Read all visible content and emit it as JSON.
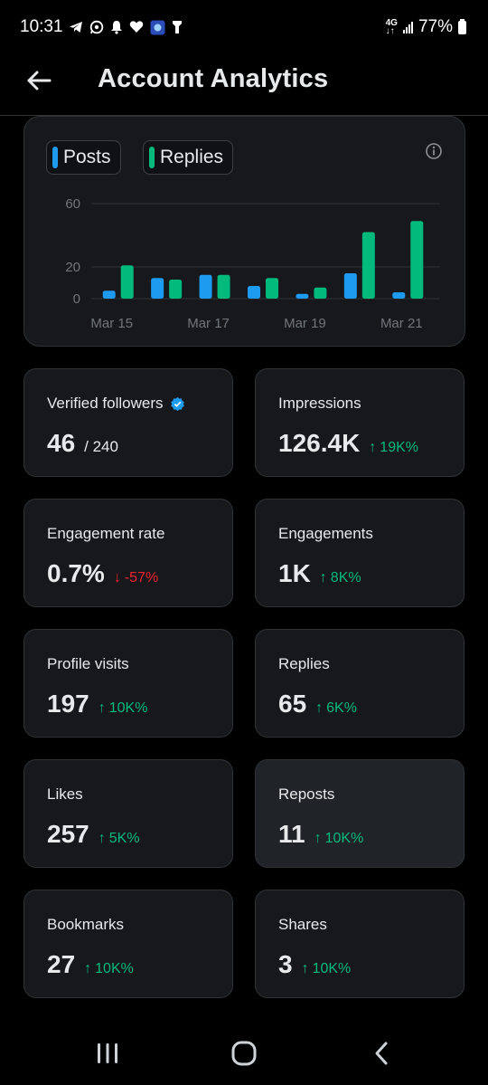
{
  "status_bar": {
    "time": "10:31",
    "notification_icons": [
      "telegram-icon",
      "whatsapp-icon",
      "bell-icon",
      "heart-icon",
      "app-icon",
      "flashlight-icon"
    ],
    "network": "4G",
    "battery": "77%"
  },
  "header": {
    "title": "Account Analytics"
  },
  "chart": {
    "legend": [
      {
        "label": "Posts",
        "color": "#1d9bf0"
      },
      {
        "label": "Replies",
        "color": "#00ba7c"
      }
    ]
  },
  "chart_data": {
    "type": "bar",
    "categories": [
      "Mar 15",
      "Mar 16",
      "Mar 17",
      "Mar 18",
      "Mar 19",
      "Mar 20",
      "Mar 21"
    ],
    "x_tick_labels": [
      "Mar 15",
      "Mar 17",
      "Mar 19",
      "Mar 21"
    ],
    "y_tick_labels": [
      "60",
      "20",
      "0"
    ],
    "ylim": [
      0,
      60
    ],
    "series": [
      {
        "name": "Posts",
        "color": "#1d9bf0",
        "values": [
          5,
          13,
          15,
          8,
          3,
          16,
          4
        ]
      },
      {
        "name": "Replies",
        "color": "#00ba7c",
        "values": [
          21,
          12,
          15,
          13,
          7,
          42,
          49
        ]
      }
    ],
    "grid": true
  },
  "stats": [
    {
      "label": "Verified followers",
      "value": "46",
      "sub": "/ 240",
      "verified_badge": true
    },
    {
      "label": "Impressions",
      "value": "126.4K",
      "delta": "19K%",
      "direction": "up"
    },
    {
      "label": "Engagement rate",
      "value": "0.7%",
      "delta": "-57%",
      "direction": "down"
    },
    {
      "label": "Engagements",
      "value": "1K",
      "delta": "8K%",
      "direction": "up"
    },
    {
      "label": "Profile visits",
      "value": "197",
      "delta": "10K%",
      "direction": "up"
    },
    {
      "label": "Replies",
      "value": "65",
      "delta": "6K%",
      "direction": "up"
    },
    {
      "label": "Likes",
      "value": "257",
      "delta": "5K%",
      "direction": "up"
    },
    {
      "label": "Reposts",
      "value": "11",
      "delta": "10K%",
      "direction": "up"
    },
    {
      "label": "Bookmarks",
      "value": "27",
      "delta": "10K%",
      "direction": "up"
    },
    {
      "label": "Shares",
      "value": "3",
      "delta": "10K%",
      "direction": "up"
    }
  ],
  "colors": {
    "up": "#00ba7c",
    "down": "#f4212e",
    "verified": "#1d9bf0"
  }
}
